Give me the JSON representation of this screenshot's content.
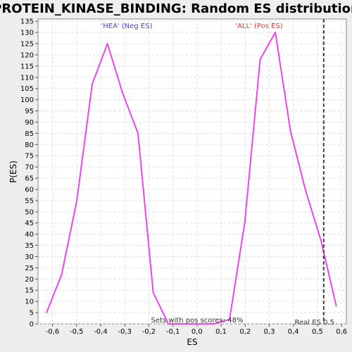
{
  "chart_data": {
    "type": "line",
    "title": "PROTEIN_KINASE_BINDING: Random ES distribution",
    "xlabel": "ES",
    "ylabel": "P(ES)",
    "xlim": [
      -0.66,
      0.62
    ],
    "ylim": [
      0,
      136
    ],
    "x_ticks": [
      -0.6,
      -0.5,
      -0.4,
      -0.3,
      -0.2,
      -0.1,
      0.0,
      0.1,
      0.2,
      0.3,
      0.4,
      0.5,
      0.6
    ],
    "x_tick_labels": [
      "-0,6",
      "-0,5",
      "-0,4",
      "-0,3",
      "-0,2",
      "-0,1",
      "0,0",
      "0,1",
      "0,2",
      "0,3",
      "0,4",
      "0,5",
      "0,6"
    ],
    "y_ticks": [
      0,
      5,
      10,
      15,
      20,
      25,
      30,
      35,
      40,
      45,
      50,
      55,
      60,
      65,
      70,
      75,
      80,
      85,
      90,
      95,
      100,
      105,
      110,
      115,
      120,
      125,
      130,
      135
    ],
    "grid": true,
    "line_color": "#ee44ee",
    "series": [
      {
        "x": [
          -0.625,
          -0.562,
          -0.499,
          -0.435,
          -0.372,
          -0.309,
          -0.245,
          -0.182,
          -0.119,
          -0.055,
          0.008,
          0.071,
          0.135,
          0.198,
          0.262,
          0.325,
          0.388,
          0.452,
          0.515,
          0.578
        ],
        "y": [
          5,
          22,
          55,
          107,
          125,
          103,
          85,
          14,
          0,
          0,
          0,
          0,
          2,
          45,
          118,
          130,
          86,
          59,
          37,
          8
        ]
      }
    ],
    "real_es": 0.526,
    "annotations": {
      "neg_label": "'HEA' (Neg ES)",
      "neg_color": "#4444dd",
      "pos_label": "'ALL' (Pos ES)",
      "pos_color": "#ee3333",
      "sets_label": "Sets with pos scores: 48%",
      "real_es_label": "Real ES 0.5"
    }
  }
}
